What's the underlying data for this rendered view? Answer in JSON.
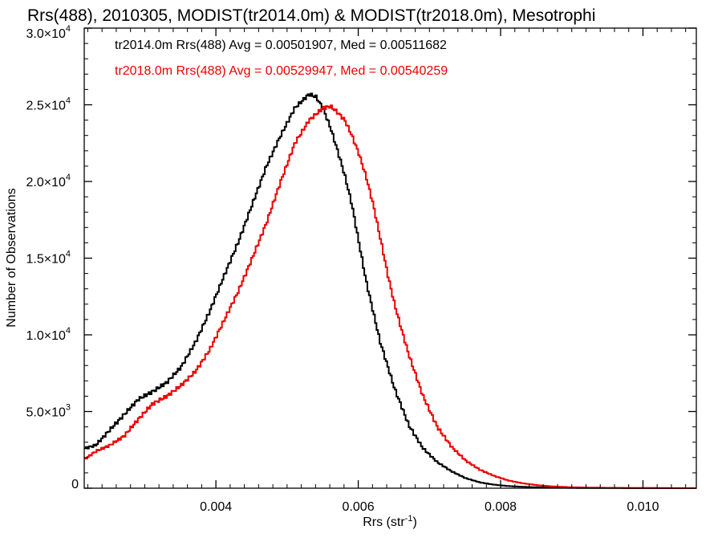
{
  "chart_data": {
    "type": "line",
    "title": "Rrs(488), 2010305, MODIST(tr2014.0m) & MODIST(tr2018.0m), Mesotrophi",
    "xlabel": "Rrs (str",
    "xlabel_sup": "-1",
    "xlabel_close": ")",
    "ylabel": "Number of Observations",
    "xlim": [
      0.00215,
      0.01075
    ],
    "ylim": [
      0,
      30000
    ],
    "x_ticks": [
      {
        "value": 0.004,
        "label": "0.004"
      },
      {
        "value": 0.006,
        "label": "0.006"
      },
      {
        "value": 0.008,
        "label": "0.008"
      },
      {
        "value": 0.01,
        "label": "0.010"
      }
    ],
    "y_ticks": [
      {
        "value": 0,
        "mant": "0",
        "exp": ""
      },
      {
        "value": 5000,
        "mant": "5.0×10",
        "exp": "3"
      },
      {
        "value": 10000,
        "mant": "1.0×10",
        "exp": "4"
      },
      {
        "value": 15000,
        "mant": "1.5×10",
        "exp": "4"
      },
      {
        "value": 20000,
        "mant": "2.0×10",
        "exp": "4"
      },
      {
        "value": 25000,
        "mant": "2.5×10",
        "exp": "4"
      },
      {
        "value": 30000,
        "mant": "3.0×10",
        "exp": "4"
      }
    ],
    "grid": false,
    "style": "step",
    "annotations": [
      {
        "text": "tr2014.0m Rrs(488) Avg = 0.00501907, Med = 0.00511682",
        "color": "#000000"
      },
      {
        "text": "tr2018.0m Rrs(488) Avg = 0.00529947, Med = 0.00540259",
        "color": "#ee0000"
      }
    ],
    "series": [
      {
        "color": "#000000",
        "x": [
          0.00215,
          0.0023,
          0.0025,
          0.0027,
          0.0029,
          0.0031,
          0.0033,
          0.0035,
          0.0037,
          0.0039,
          0.0041,
          0.0043,
          0.0045,
          0.0047,
          0.0049,
          0.0051,
          0.0053,
          0.0054,
          0.0055,
          0.0056,
          0.0057,
          0.0058,
          0.0059,
          0.006,
          0.0061,
          0.0062,
          0.0063,
          0.0065,
          0.0067,
          0.0069,
          0.0071,
          0.0073,
          0.0075,
          0.0077,
          0.0079,
          0.0081,
          0.0083,
          0.0085,
          0.0087,
          0.009,
          0.0095,
          0.01,
          0.01075
        ],
        "y": [
          2600,
          2800,
          3800,
          4800,
          5800,
          6300,
          6900,
          7900,
          9500,
          11500,
          13800,
          16000,
          18500,
          21000,
          23000,
          24800,
          25700,
          25500,
          24700,
          23500,
          22000,
          20400,
          18500,
          16000,
          13500,
          11500,
          9500,
          6500,
          4100,
          2600,
          1700,
          1100,
          650,
          380,
          230,
          140,
          90,
          60,
          40,
          20,
          10,
          5,
          0
        ]
      },
      {
        "color": "#ee0000",
        "x": [
          0.00215,
          0.0023,
          0.0025,
          0.0027,
          0.0029,
          0.0031,
          0.0033,
          0.0035,
          0.0037,
          0.0039,
          0.0041,
          0.0043,
          0.0045,
          0.0047,
          0.0049,
          0.0051,
          0.0053,
          0.0055,
          0.0056,
          0.0057,
          0.0058,
          0.0059,
          0.006,
          0.0061,
          0.0062,
          0.0063,
          0.0064,
          0.0065,
          0.0066,
          0.0067,
          0.0069,
          0.0071,
          0.0073,
          0.0075,
          0.0077,
          0.0079,
          0.0081,
          0.0083,
          0.0085,
          0.0087,
          0.009,
          0.0095,
          0.01,
          0.01075
        ],
        "y": [
          1900,
          2400,
          2800,
          3400,
          4500,
          5500,
          6000,
          6700,
          7600,
          9000,
          10900,
          12800,
          15000,
          17300,
          20000,
          22500,
          24000,
          24800,
          24900,
          24500,
          24000,
          23000,
          21800,
          20300,
          18500,
          16300,
          14000,
          12000,
          10300,
          8700,
          6000,
          4000,
          2700,
          1800,
          1200,
          800,
          500,
          320,
          200,
          120,
          60,
          25,
          10,
          0
        ]
      }
    ]
  }
}
